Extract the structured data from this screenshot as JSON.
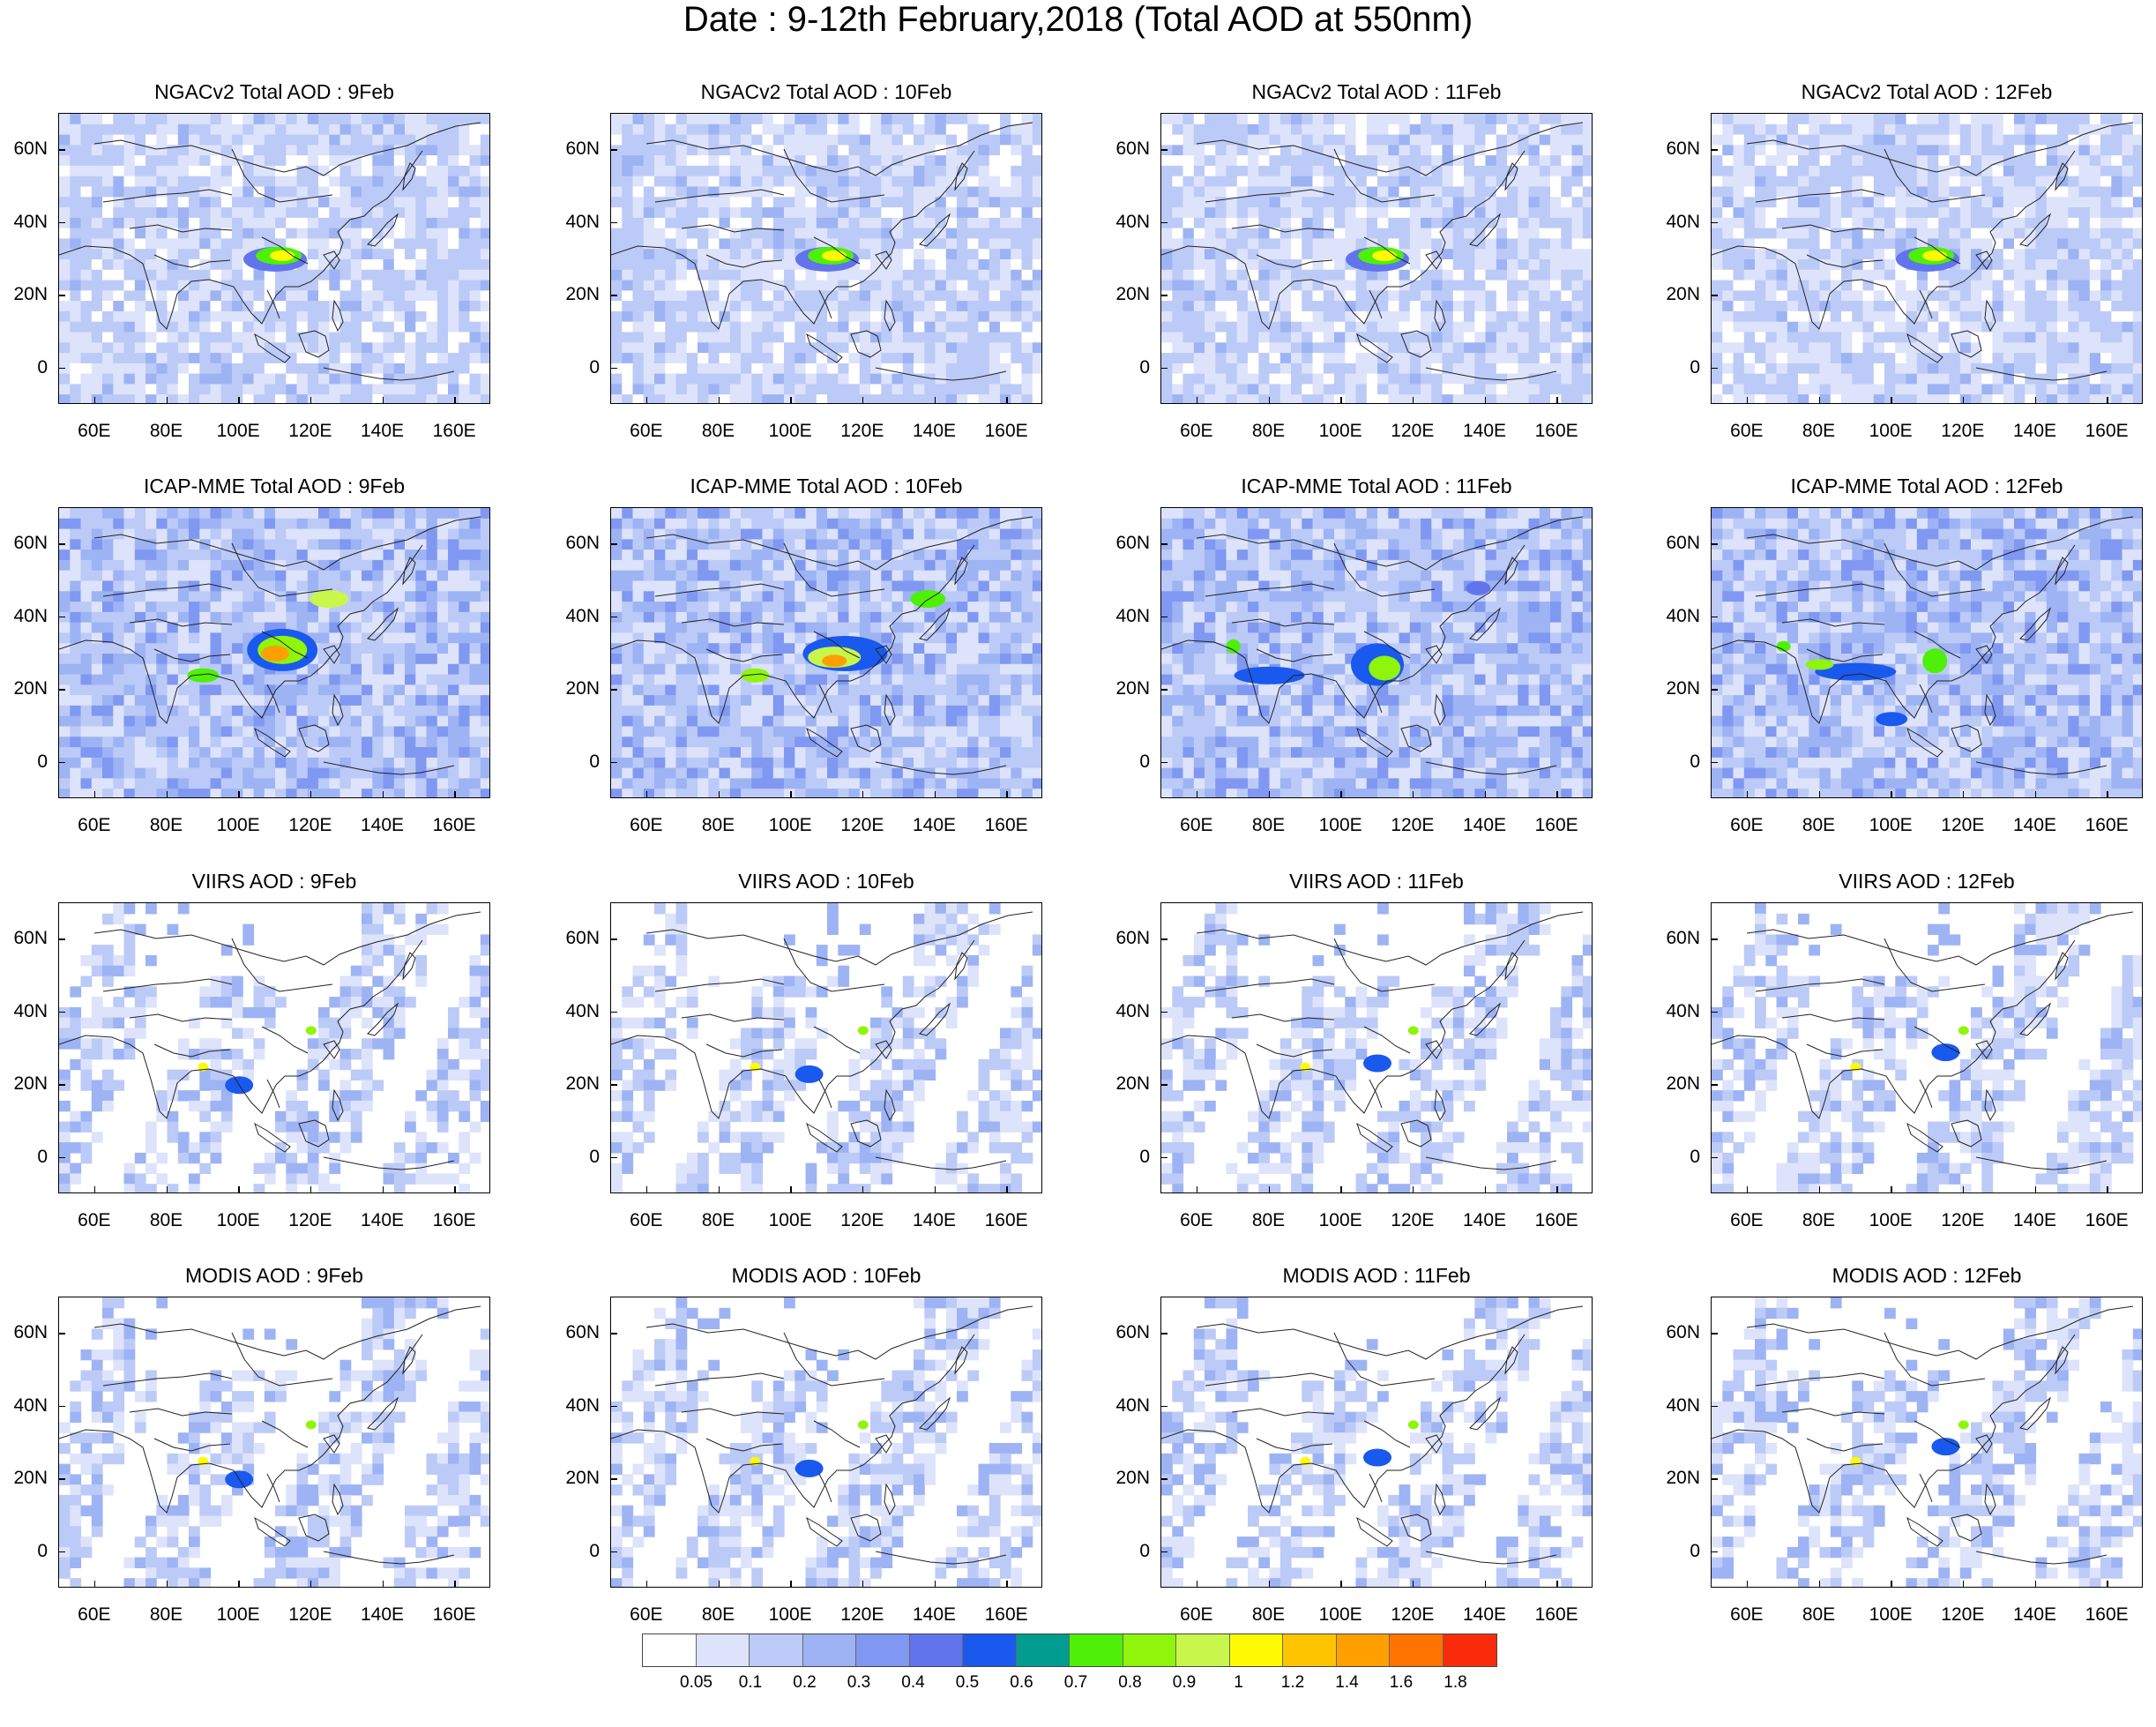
{
  "title": "Date : 9-12th February,2018 (Total AOD at 550nm)",
  "panels": [
    {
      "title": "NGACv2 Total AOD : 9Feb",
      "kind": "model-ngac"
    },
    {
      "title": "NGACv2 Total AOD : 10Feb",
      "kind": "model-ngac"
    },
    {
      "title": "NGACv2 Total AOD : 11Feb",
      "kind": "model-ngac"
    },
    {
      "title": "NGACv2 Total AOD : 12Feb",
      "kind": "model-ngac"
    },
    {
      "title": "ICAP-MME Total AOD : 9Feb",
      "kind": "model-icap"
    },
    {
      "title": "ICAP-MME Total AOD : 10Feb",
      "kind": "model-icap"
    },
    {
      "title": "ICAP-MME Total AOD : 11Feb",
      "kind": "model-icap"
    },
    {
      "title": "ICAP-MME Total AOD : 12Feb",
      "kind": "model-icap"
    },
    {
      "title": "VIIRS AOD : 9Feb",
      "kind": "sat"
    },
    {
      "title": "VIIRS AOD : 10Feb",
      "kind": "sat"
    },
    {
      "title": "VIIRS AOD : 11Feb",
      "kind": "sat"
    },
    {
      "title": "VIIRS AOD : 12Feb",
      "kind": "sat"
    },
    {
      "title": "MODIS AOD : 9Feb",
      "kind": "sat"
    },
    {
      "title": "MODIS AOD : 10Feb",
      "kind": "sat"
    },
    {
      "title": "MODIS AOD : 11Feb",
      "kind": "sat"
    },
    {
      "title": "MODIS AOD : 12Feb",
      "kind": "sat"
    }
  ],
  "lat_labels": [
    "60N",
    "40N",
    "20N",
    "0"
  ],
  "lon_labels": [
    "60E",
    "80E",
    "100E",
    "120E",
    "140E",
    "160E"
  ],
  "colorbar": {
    "colors": [
      "#ffffff",
      "#dde3fb",
      "#bccaf7",
      "#9db3f4",
      "#8098f1",
      "#6274ec",
      "#1a59ee",
      "#009d90",
      "#4ef007",
      "#8ef50b",
      "#c9f64a",
      "#fefa04",
      "#ffc400",
      "#ff9f00",
      "#ff7300",
      "#fa2b0b"
    ],
    "labels": [
      "0.05",
      "0.1",
      "0.2",
      "0.3",
      "0.4",
      "0.5",
      "0.6",
      "0.7",
      "0.8",
      "0.9",
      "1",
      "1.2",
      "1.4",
      "1.6",
      "1.8"
    ]
  }
}
